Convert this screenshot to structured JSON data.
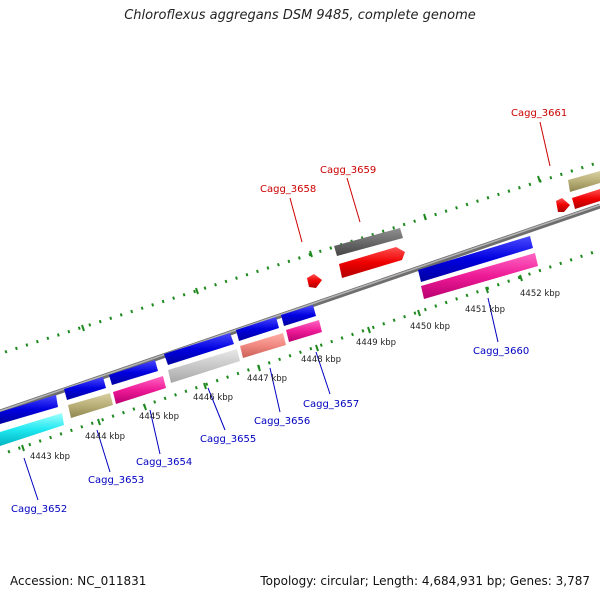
{
  "title": "Chloroflexus aggregans DSM 9485, complete genome",
  "footer": {
    "accession": "Accession: NC_011831",
    "summary": "Topology: circular; Length: 4,684,931 bp; Genes: 3,787"
  },
  "colors": {
    "backbone": "#8c8c8c",
    "tick": "#1f8a1f",
    "forward_label": "#cc0000",
    "reverse_label": "#0000c0",
    "scale_label": "#222222"
  },
  "scale_labels": [
    "4443 kbp",
    "4444 kbp",
    "4445 kbp",
    "4446 kbp",
    "4447 kbp",
    "4448 kbp",
    "4449 kbp",
    "4450 kbp",
    "4451 kbp",
    "4452 kbp"
  ],
  "gene_labels": {
    "cagg_3652": "Cagg_3652",
    "cagg_3653": "Cagg_3653",
    "cagg_3654": "Cagg_3654",
    "cagg_3655": "Cagg_3655",
    "cagg_3656": "Cagg_3656",
    "cagg_3657": "Cagg_3657",
    "cagg_3658": "Cagg_3658",
    "cagg_3659": "Cagg_3659",
    "cagg_3660": "Cagg_3660",
    "cagg_3661": "Cagg_3661"
  }
}
